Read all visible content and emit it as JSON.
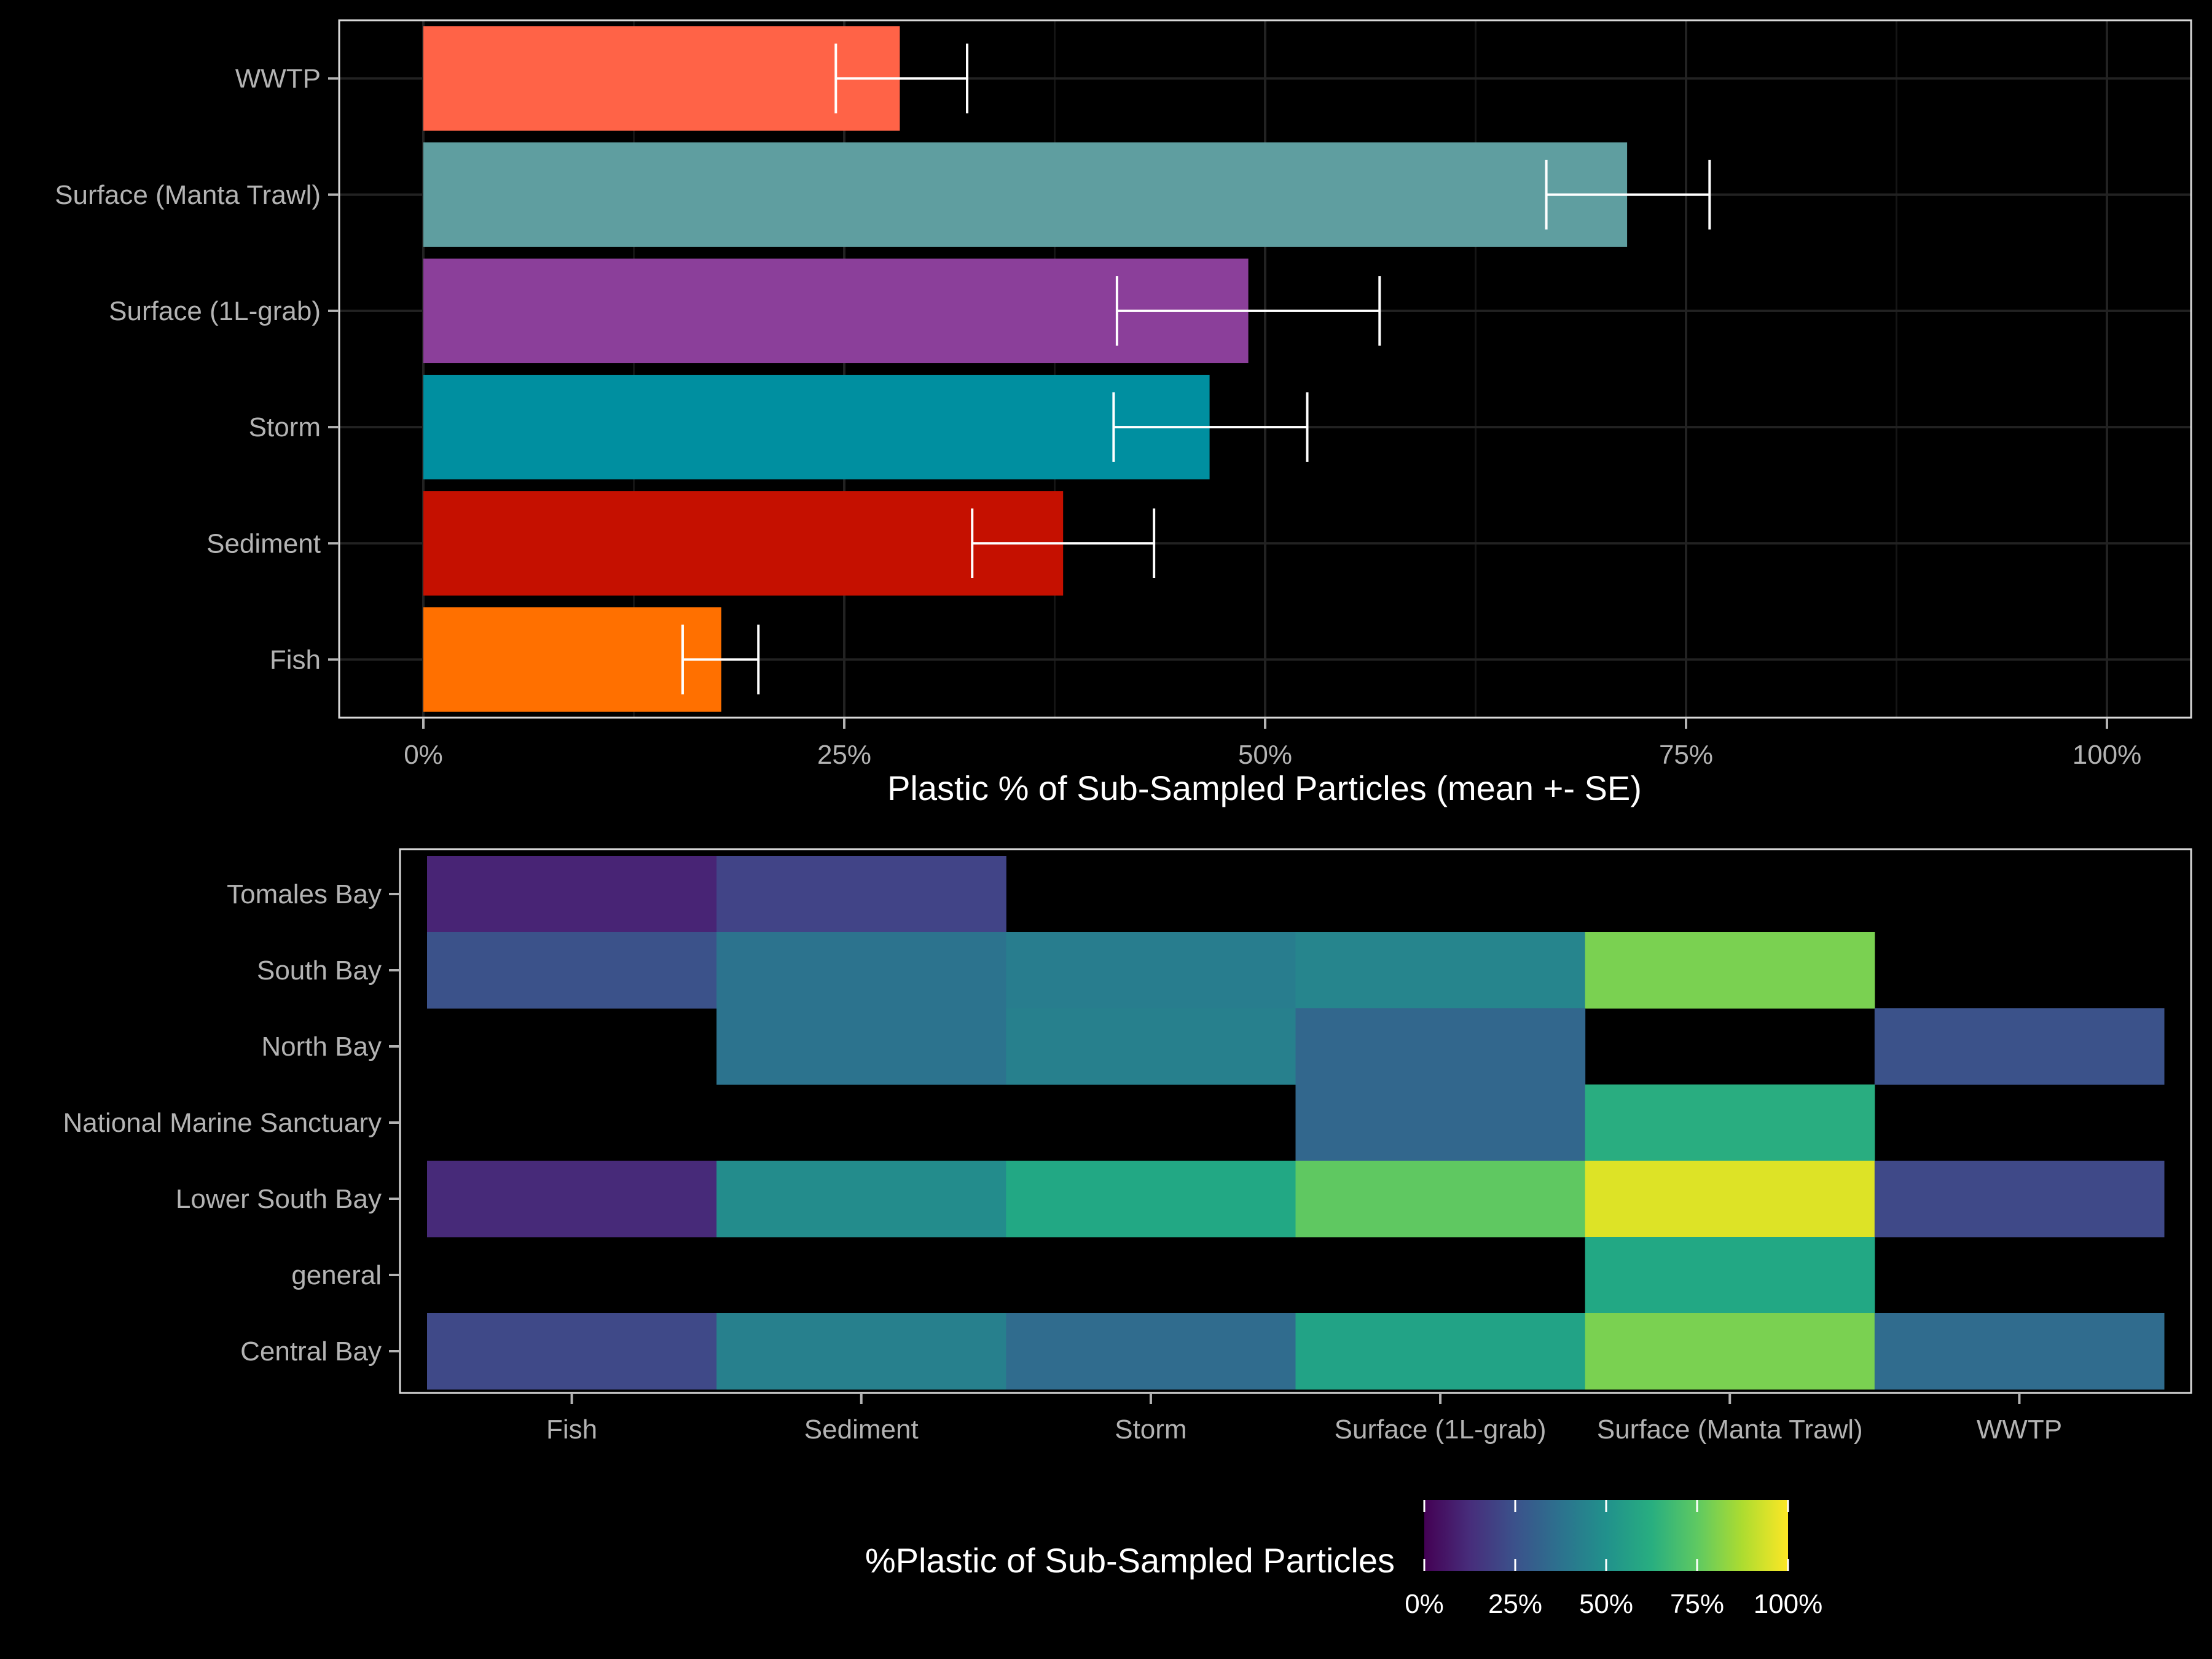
{
  "chart_data": [
    {
      "type": "bar",
      "orientation": "horizontal",
      "categories": [
        "WWTP",
        "Surface (Manta Trawl)",
        "Surface (1L-grab)",
        "Storm",
        "Sediment",
        "Fish"
      ],
      "values": [
        28.3,
        71.5,
        49.0,
        46.7,
        38.0,
        17.7
      ],
      "error_low": [
        24.5,
        66.7,
        41.2,
        41.0,
        32.6,
        15.4
      ],
      "error_high": [
        32.3,
        76.4,
        56.8,
        52.5,
        43.4,
        19.9
      ],
      "bar_colors": [
        "#FF6347",
        "#5F9EA0",
        "#8B3F9A",
        "#008FA0",
        "#C51000",
        "#FF7000"
      ],
      "xlabel": "Plastic % of Sub-Sampled Particles (mean +- SE)",
      "ylabel": "",
      "xlim": [
        -5,
        105
      ],
      "x_ticks": [
        0,
        25,
        50,
        75,
        100
      ],
      "x_tick_labels": [
        "0%",
        "25%",
        "50%",
        "75%",
        "100%"
      ],
      "grid": true
    },
    {
      "type": "heatmap",
      "columns": [
        "Fish",
        "Sediment",
        "Storm",
        "Surface (1L-grab)",
        "Surface (Manta Trawl)",
        "WWTP"
      ],
      "rows": [
        "Tomales Bay",
        "South Bay",
        "North Bay",
        "National Marine Sanctuary",
        "Lower South Bay",
        "general",
        "Central Bay"
      ],
      "values": [
        [
          10,
          20,
          null,
          null,
          null,
          null
        ],
        [
          25,
          38,
          42,
          45,
          80,
          null
        ],
        [
          null,
          38,
          43,
          33,
          null,
          25
        ],
        [
          null,
          null,
          null,
          33,
          62,
          null
        ],
        [
          12,
          48,
          60,
          75,
          95,
          22
        ],
        [
          null,
          null,
          null,
          null,
          60,
          null
        ],
        [
          22,
          43,
          35,
          58,
          80,
          35
        ]
      ],
      "colorscale": "viridis",
      "color_range": [
        0,
        100
      ],
      "legend": {
        "title": "%Plastic of Sub-Sampled Particles",
        "position": "bottom",
        "ticks": [
          0,
          25,
          50,
          75,
          100
        ],
        "tick_labels": [
          "0%",
          "25%",
          "50%",
          "75%",
          "100%"
        ]
      }
    }
  ],
  "colors": {
    "background": "#000000",
    "panel_border": "#d9d9d9",
    "grid": "#1f1f1f",
    "tick_text": "#b3b3b3",
    "error_bar": "#ffffff"
  }
}
